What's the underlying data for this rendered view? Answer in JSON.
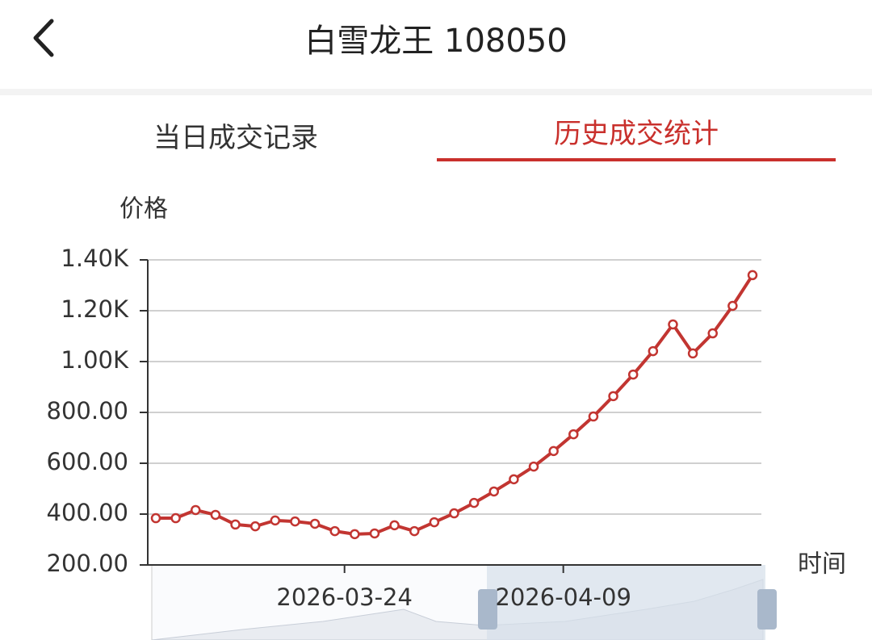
{
  "header": {
    "title": "白雪龙王 108050"
  },
  "tabs": [
    "当日成交记录",
    "历史成交统计"
  ],
  "chart_data": {
    "type": "line",
    "y_label": "价格",
    "x_label": "时间",
    "categories": [
      null,
      null,
      null,
      null,
      null,
      null,
      null,
      null,
      null,
      "2026-03-24",
      null,
      null,
      null,
      null,
      null,
      null,
      null,
      null,
      null,
      null,
      "2026-04-09",
      null,
      null,
      null,
      null,
      null,
      null,
      null,
      null,
      null,
      null
    ],
    "series": [
      {
        "color": "#c23531",
        "values": [
          384,
          384,
          416,
          397,
          359,
          352,
          375,
          371,
          362,
          333,
          321,
          324,
          356,
          333,
          368,
          403,
          444,
          489,
          537,
          587,
          648,
          714,
          784,
          864,
          949,
          1041,
          1146,
          1032,
          1111,
          1219,
          1340
        ]
      }
    ],
    "ylim": [
      200,
      1400
    ],
    "yticks": [
      {
        "value": 200,
        "label": "200.00"
      },
      {
        "value": 400,
        "label": "400.00"
      },
      {
        "value": 600,
        "label": "600.00"
      },
      {
        "value": 800,
        "label": "800.00"
      },
      {
        "value": 1000,
        "label": "1.00K"
      },
      {
        "value": 1200,
        "label": "1.20K"
      },
      {
        "value": 1400,
        "label": "1.40K"
      }
    ],
    "grid": true
  }
}
